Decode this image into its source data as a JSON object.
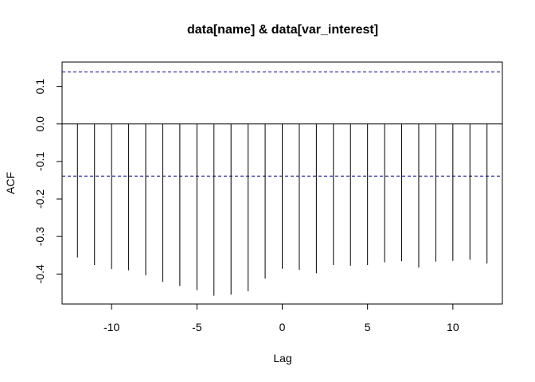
{
  "chart_data": {
    "type": "bar",
    "title": "data[name] & data[var_interest]",
    "xlabel": "Lag",
    "ylabel": "ACF",
    "xlim": [
      -12.9,
      12.9
    ],
    "ylim": [
      -0.48,
      0.165
    ],
    "xticks": [
      -10,
      -5,
      0,
      5,
      10
    ],
    "yticks": [
      0.1,
      0.0,
      -0.1,
      -0.2,
      -0.3,
      -0.4
    ],
    "ytick_labels": [
      "0.1",
      "0.0",
      "-0.1",
      "-0.2",
      "-0.3",
      "-0.4"
    ],
    "xtick_labels": [
      "-10",
      "-5",
      "0",
      "5",
      "10"
    ],
    "confidence_bounds": [
      0.139,
      -0.139
    ],
    "lags": [
      -12,
      -11,
      -10,
      -9,
      -8,
      -7,
      -6,
      -5,
      -4,
      -3,
      -2,
      -1,
      0,
      1,
      2,
      3,
      4,
      5,
      6,
      7,
      8,
      9,
      10,
      11,
      12
    ],
    "acf": [
      -0.356,
      -0.376,
      -0.387,
      -0.39,
      -0.403,
      -0.421,
      -0.432,
      -0.443,
      -0.458,
      -0.455,
      -0.446,
      -0.412,
      -0.386,
      -0.389,
      -0.398,
      -0.376,
      -0.378,
      -0.376,
      -0.369,
      -0.366,
      -0.383,
      -0.367,
      -0.365,
      -0.362,
      -0.372
    ],
    "grid": false,
    "legend": "none",
    "colors": {
      "bars": "#000000",
      "bounds": "#00008b",
      "zero_line": "#000000"
    }
  }
}
